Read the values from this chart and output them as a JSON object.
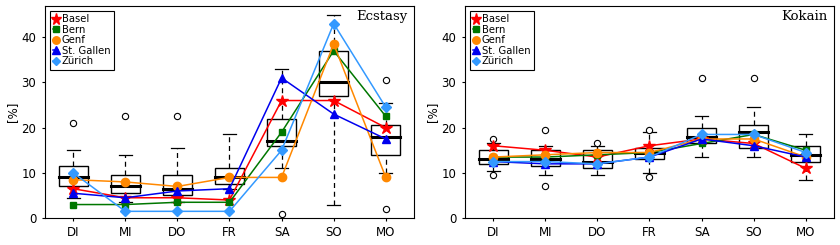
{
  "days": [
    "DI",
    "MI",
    "DO",
    "FR",
    "SA",
    "SO",
    "MO"
  ],
  "title_ecstasy": "Ecstasy",
  "title_kokain": "Kokain",
  "ylabel": "[%]",
  "ecstasy": {
    "box_q1": [
      7.0,
      5.5,
      5.0,
      7.5,
      16.0,
      27.0,
      14.0
    ],
    "box_median": [
      9.0,
      7.0,
      6.5,
      9.0,
      17.0,
      30.0,
      18.0
    ],
    "box_q3": [
      11.5,
      9.5,
      9.5,
      11.0,
      22.0,
      37.0,
      20.5
    ],
    "box_whislo": [
      4.5,
      3.5,
      3.5,
      6.5,
      11.0,
      3.0,
      10.0
    ],
    "box_whishi": [
      15.0,
      14.0,
      15.5,
      18.5,
      33.0,
      45.0,
      25.5
    ],
    "outliers_x": [
      0,
      1,
      2,
      4,
      6,
      6
    ],
    "outliers_y": [
      21.0,
      22.5,
      22.5,
      1.0,
      30.5,
      2.0
    ],
    "cities": {
      "Basel": [
        6.5,
        4.5,
        4.5,
        4.0,
        26.0,
        26.0,
        20.0
      ],
      "Bern": [
        3.0,
        3.0,
        3.5,
        3.5,
        19.0,
        37.0,
        22.5
      ],
      "Genf": [
        8.5,
        8.0,
        7.0,
        9.0,
        9.0,
        38.5,
        9.0
      ],
      "St.Gallen": [
        5.5,
        4.5,
        6.0,
        6.5,
        31.0,
        23.0,
        17.5
      ],
      "Zurich": [
        10.0,
        1.5,
        1.5,
        1.5,
        15.0,
        43.0,
        24.5
      ]
    }
  },
  "kokain": {
    "box_q1": [
      12.0,
      11.5,
      11.0,
      13.0,
      16.5,
      15.5,
      12.5
    ],
    "box_median": [
      13.0,
      13.0,
      12.5,
      14.5,
      18.0,
      19.0,
      14.0
    ],
    "box_q3": [
      15.0,
      15.0,
      15.0,
      15.5,
      20.0,
      20.5,
      16.0
    ],
    "box_whislo": [
      10.5,
      9.5,
      9.5,
      10.0,
      13.5,
      13.5,
      8.5
    ],
    "box_whishi": [
      16.5,
      16.0,
      16.0,
      19.0,
      22.5,
      24.5,
      18.5
    ],
    "outliers_x": [
      0,
      0,
      1,
      1,
      2,
      3,
      3,
      4,
      5
    ],
    "outliers_y": [
      17.5,
      9.5,
      19.5,
      7.0,
      16.5,
      19.5,
      9.0,
      31.0,
      31.0
    ],
    "cities": {
      "Basel": [
        16.0,
        15.0,
        13.5,
        16.0,
        17.5,
        16.5,
        11.0
      ],
      "Bern": [
        13.5,
        13.5,
        14.0,
        14.5,
        16.5,
        18.5,
        15.0
      ],
      "Genf": [
        13.5,
        14.0,
        14.5,
        14.5,
        17.5,
        17.5,
        13.5
      ],
      "St.Gallen": [
        12.5,
        12.0,
        12.0,
        13.5,
        17.5,
        16.0,
        13.5
      ],
      "Zurich": [
        12.5,
        12.5,
        12.0,
        13.5,
        18.5,
        18.5,
        14.5
      ]
    }
  },
  "city_colors": {
    "Basel": "#ff0000",
    "Bern": "#007700",
    "Genf": "#ff8800",
    "St.Gallen": "#0000ee",
    "Zurich": "#3399ff"
  },
  "city_markers": {
    "Basel": "*",
    "Bern": "s",
    "Genf": "o",
    "St.Gallen": "^",
    "Zurich": "D"
  },
  "city_labels": [
    "Basel",
    "Bern",
    "Genf",
    "St. Gallen",
    "Zürich"
  ],
  "city_markersizes": {
    "Basel": 9,
    "Bern": 5,
    "Genf": 6,
    "St.Gallen": 6,
    "Zurich": 5
  },
  "ylim": [
    0,
    47
  ],
  "yticks": [
    0,
    10,
    20,
    30,
    40
  ]
}
